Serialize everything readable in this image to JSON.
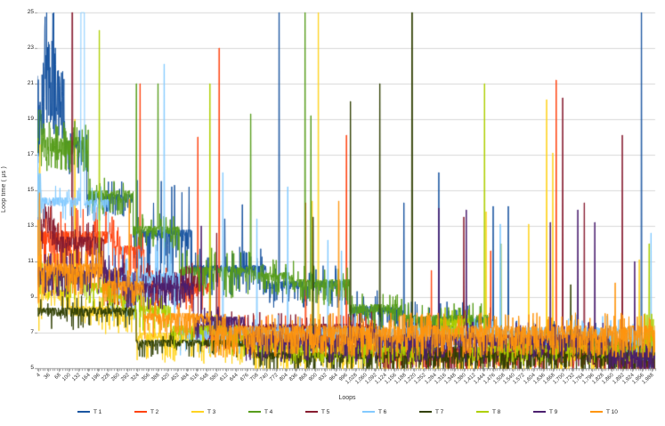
{
  "chart_data": {
    "type": "line",
    "title": "",
    "xlabel": "Loops",
    "ylabel": "Loop time ( µs )",
    "xlim": [
      0,
      2000
    ],
    "ylim": [
      5,
      25
    ],
    "grid": true,
    "legend_position": "bottom",
    "seed": 7,
    "y_ticks": [
      5,
      7,
      9,
      11,
      13,
      15,
      17,
      19,
      21,
      23,
      25
    ],
    "y_tick_labels": [
      "5",
      "7",
      "9",
      "11",
      "13",
      "15",
      "17",
      "19",
      "21",
      "23",
      "25"
    ],
    "x_minor_tick_step": 8,
    "x_tick_values": [
      4,
      36,
      68,
      100,
      132,
      164,
      196,
      228,
      260,
      292,
      324,
      356,
      388,
      420,
      452,
      484,
      516,
      548,
      580,
      612,
      644,
      676,
      708,
      740,
      772,
      804,
      836,
      868,
      900,
      932,
      964,
      996,
      1028,
      1060,
      1092,
      1124,
      1156,
      1188,
      1220,
      1252,
      1284,
      1316,
      1348,
      1380,
      1412,
      1444,
      1476,
      1508,
      1540,
      1572,
      1604,
      1636,
      1668,
      1700,
      1732,
      1764,
      1796,
      1828,
      1860,
      1892,
      1924,
      1956,
      1988
    ],
    "x_tick_labels": [
      "4",
      "36",
      "68",
      "100",
      "132",
      "164",
      "196",
      "228",
      "260",
      "292",
      "324",
      "356",
      "388",
      "420",
      "452",
      "484",
      "516",
      "548",
      "580",
      "612",
      "644",
      "676",
      "708",
      "740",
      "772",
      "804",
      "836",
      "868",
      "900",
      "932",
      "964",
      "996",
      "1,028",
      "1,060",
      "1,092",
      "1,124",
      "1,156",
      "1,188",
      "1,220",
      "1,252",
      "1,284",
      "1,316",
      "1,348",
      "1,380",
      "1,412",
      "1,444",
      "1,476",
      "1,508",
      "1,540",
      "1,572",
      "1,604",
      "1,636",
      "1,668",
      "1,700",
      "1,732",
      "1,764",
      "1,796",
      "1,828",
      "1,860",
      "1,892",
      "1,924",
      "1,956",
      "1,988"
    ],
    "series": [
      {
        "name": "T 1",
        "color": "#1A55A0",
        "segments": [
          [
            0,
            12,
            20,
            2,
            0.4,
            2
          ],
          [
            12,
            60,
            23.5,
            3.5,
            0.6,
            2
          ],
          [
            60,
            90,
            21.8,
            4.2,
            0.12,
            1
          ],
          [
            90,
            160,
            17.8,
            0.9,
            0.25,
            1
          ],
          [
            160,
            310,
            14.8,
            0.5,
            0.2,
            0.8
          ],
          [
            310,
            500,
            12.8,
            0.5,
            0.22,
            3.2
          ],
          [
            500,
            740,
            10.8,
            0.5,
            0.2,
            1.2
          ],
          [
            740,
            1010,
            9.9,
            0.5,
            0.2,
            1
          ],
          [
            1010,
            1180,
            8.5,
            0.5,
            0.2,
            1
          ],
          [
            1180,
            1470,
            7.9,
            0.5,
            0.2,
            1
          ],
          [
            1470,
            1870,
            7.1,
            0.8,
            0.12,
            0.8
          ],
          [
            1870,
            2000,
            6.1,
            0.5,
            0.3,
            0.7
          ]
        ],
        "spikes": [
          [
            606,
            13.4
          ],
          [
            663,
            14.2
          ],
          [
            782,
            25
          ],
          [
            1186,
            14.3
          ],
          [
            1299,
            16
          ],
          [
            1475,
            14.1
          ],
          [
            1524,
            14.1
          ],
          [
            1955,
            25
          ]
        ]
      },
      {
        "name": "T 2",
        "color": "#FF420E",
        "segments": [
          [
            0,
            250,
            12.7,
            0.8,
            0.25,
            1.5
          ],
          [
            250,
            345,
            11.9,
            0.6,
            0.2,
            1.2
          ],
          [
            345,
            560,
            9.8,
            0.7,
            0.2,
            1
          ],
          [
            560,
            1100,
            7.3,
            0.8,
            0.15,
            0.8
          ],
          [
            1100,
            2000,
            6.2,
            0.6,
            0.2,
            0.7
          ]
        ],
        "spikes": [
          [
            332,
            21
          ],
          [
            445,
            10.4
          ],
          [
            519,
            18
          ],
          [
            588,
            23
          ],
          [
            868,
            14.3
          ],
          [
            1000,
            18.1
          ],
          [
            1275,
            10.5
          ],
          [
            1467,
            11.6
          ],
          [
            1679,
            21.2
          ]
        ]
      },
      {
        "name": "T 3",
        "color": "#FFD320",
        "segments": [
          [
            0,
            14,
            15,
            5,
            0.5,
            3
          ],
          [
            14,
            106,
            9.4,
            0.6,
            0.2,
            0.8
          ],
          [
            106,
            320,
            8.5,
            0.7,
            0.2,
            0.9
          ],
          [
            320,
            520,
            7.0,
            0.5,
            0.22,
            1.2
          ],
          [
            520,
            700,
            6.7,
            0.6,
            0.2,
            0.9
          ],
          [
            700,
            1100,
            6.3,
            0.5,
            0.25,
            1.3
          ],
          [
            1100,
            2000,
            5.9,
            0.5,
            0.2,
            0.9
          ]
        ],
        "spikes": [
          [
            121,
            19
          ],
          [
            889,
            14.4
          ],
          [
            909,
            25
          ],
          [
            1452,
            13.8
          ],
          [
            1590,
            13.1
          ],
          [
            1648,
            20.1
          ],
          [
            1668,
            17.1
          ],
          [
            1948,
            11.1
          ]
        ]
      },
      {
        "name": "T 4",
        "color": "#579D1C",
        "segments": [
          [
            0,
            165,
            18,
            1,
            0.3,
            1
          ],
          [
            165,
            310,
            15,
            0.6,
            0.2,
            0.8
          ],
          [
            310,
            460,
            13,
            0.6,
            0.2,
            0.8
          ],
          [
            460,
            700,
            10.7,
            0.6,
            0.25,
            1.2
          ],
          [
            700,
            830,
            10.4,
            0.5,
            0.2,
            0.8
          ],
          [
            830,
            1010,
            10,
            0.6,
            0.2,
            0.9
          ],
          [
            1010,
            1180,
            8.6,
            0.7,
            0.2,
            0.8
          ],
          [
            1180,
            1460,
            8,
            0.6,
            0.2,
            0.8
          ],
          [
            1460,
            2000,
            6.7,
            0.7,
            0.15,
            0.7
          ]
        ],
        "spikes": [
          [
            4,
            19.5,
            8
          ],
          [
            320,
            21
          ],
          [
            390,
            21
          ],
          [
            690,
            19.3
          ],
          [
            866,
            25
          ],
          [
            885,
            19.2
          ],
          [
            1500,
            12
          ]
        ]
      },
      {
        "name": "T 5",
        "color": "#871C30",
        "segments": [
          [
            0,
            60,
            13.5,
            0.8,
            0.25,
            1
          ],
          [
            60,
            215,
            12.4,
            0.7,
            0.2,
            1
          ],
          [
            215,
            520,
            10.2,
            0.7,
            0.2,
            1
          ],
          [
            520,
            1100,
            7.5,
            0.8,
            0.15,
            0.8
          ],
          [
            1100,
            1850,
            6.2,
            0.6,
            0.25,
            0.7
          ],
          [
            1850,
            2000,
            6.0,
            0.7,
            0.5,
            0.8
          ]
        ],
        "spikes": [
          [
            112,
            25,
            3
          ],
          [
            580,
            12.6
          ],
          [
            1380,
            13.5
          ],
          [
            1700,
            20.2
          ],
          [
            1770,
            14.3
          ],
          [
            1893,
            18.1
          ]
        ]
      },
      {
        "name": "T 6",
        "color": "#83CAFF",
        "segments": [
          [
            0,
            12,
            16,
            3,
            0.4,
            2
          ],
          [
            12,
            135,
            14.6,
            0.5,
            0.15,
            0.8
          ],
          [
            135,
            230,
            14.5,
            0.5,
            0.2,
            0.8
          ],
          [
            230,
            460,
            10.4,
            0.8,
            0.2,
            2
          ],
          [
            460,
            1920,
            7.3,
            0.8,
            0.12,
            0.8
          ],
          [
            1920,
            1962,
            6.9,
            0.8,
            0.6,
            0.8
          ],
          [
            1962,
            2000,
            6.5,
            0.6,
            0.3,
            0.6
          ]
        ],
        "spikes": [
          [
            141,
            25,
            12
          ],
          [
            410,
            22.1
          ],
          [
            600,
            16
          ],
          [
            710,
            13.4
          ],
          [
            810,
            15.2
          ],
          [
            940,
            12.2
          ],
          [
            984,
            11.6
          ],
          [
            1498,
            13.1
          ],
          [
            1986,
            12.6
          ]
        ]
      },
      {
        "name": "T 7",
        "color": "#314004",
        "segments": [
          [
            0,
            320,
            8.4,
            0.5,
            0.1,
            0.8
          ],
          [
            320,
            700,
            6.6,
            0.4,
            0.1,
            0.6
          ],
          [
            700,
            2000,
            5.9,
            0.4,
            0.3,
            0.7
          ]
        ],
        "spikes": [
          [
            892,
            13.5
          ],
          [
            1013,
            20
          ],
          [
            1108,
            21
          ],
          [
            1212,
            25,
            3
          ],
          [
            1726,
            9.7
          ]
        ]
      },
      {
        "name": "T 8",
        "color": "#AECF00",
        "segments": [
          [
            0,
            160,
            10.4,
            0.7,
            0.2,
            0.9
          ],
          [
            160,
            240,
            9.8,
            0.6,
            0.2,
            0.8
          ],
          [
            240,
            330,
            9.2,
            0.6,
            0.15,
            0.8
          ],
          [
            330,
            430,
            8.55,
            0.7,
            0.2,
            0.8
          ],
          [
            430,
            620,
            7.4,
            0.6,
            0.1,
            0.7
          ],
          [
            620,
            700,
            6.9,
            0.6,
            0.2,
            0.7
          ],
          [
            700,
            1290,
            6.3,
            0.5,
            0.15,
            0.6
          ],
          [
            1290,
            1400,
            7.8,
            0.5,
            0.25,
            0.7
          ],
          [
            1400,
            1965,
            6.3,
            0.5,
            0.15,
            0.6
          ],
          [
            1965,
            1995,
            7.4,
            1.2,
            0.5,
            0.8
          ]
        ],
        "spikes": [
          [
            200,
            24
          ],
          [
            558,
            21
          ],
          [
            1447,
            21
          ],
          [
            1980,
            12
          ]
        ]
      },
      {
        "name": "T 9",
        "color": "#4B1F6F",
        "segments": [
          [
            0,
            280,
            10.7,
            0.7,
            0.3,
            1
          ],
          [
            280,
            505,
            9.8,
            0.6,
            0.3,
            0.9
          ],
          [
            505,
            670,
            7.9,
            0.5,
            0.2,
            0.8
          ],
          [
            670,
            1850,
            6.9,
            0.8,
            0.2,
            0.8
          ],
          [
            1850,
            2000,
            5.9,
            0.5,
            0.4,
            0.7
          ]
        ],
        "spikes": [
          [
            530,
            13
          ],
          [
            1299,
            14
          ],
          [
            1388,
            13.9
          ],
          [
            1660,
            13.2
          ],
          [
            1749,
            13.9
          ],
          [
            1804,
            13.2
          ],
          [
            1933,
            11
          ]
        ]
      },
      {
        "name": "T 10",
        "color": "#FF950E",
        "segments": [
          [
            0,
            10,
            15,
            4,
            0.5,
            3
          ],
          [
            10,
            210,
            10.9,
            0.8,
            0.3,
            1
          ],
          [
            210,
            345,
            9.9,
            0.6,
            0.2,
            0.9
          ],
          [
            345,
            560,
            8.1,
            0.6,
            0.2,
            0.9
          ],
          [
            560,
            2000,
            7.4,
            1.0,
            0.3,
            0.8
          ]
        ],
        "spikes": [
          [
            297,
            14.5
          ],
          [
            975,
            14.4
          ],
          [
            1870,
            9.8
          ]
        ]
      }
    ]
  }
}
